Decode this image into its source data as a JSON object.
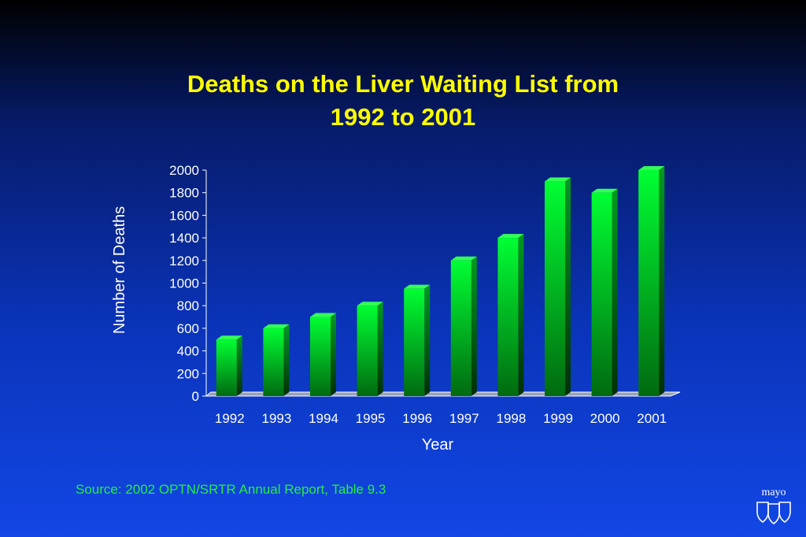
{
  "chart_data": {
    "type": "bar",
    "title_line1": "Deaths on the Liver Waiting List from",
    "title_line2": "1992 to 2001",
    "xlabel": "Year",
    "ylabel": "Number of Deaths",
    "categories": [
      "1992",
      "1993",
      "1994",
      "1995",
      "1996",
      "1997",
      "1998",
      "1999",
      "2000",
      "2001"
    ],
    "values": [
      500,
      600,
      700,
      800,
      950,
      1200,
      1400,
      1900,
      1800,
      2000
    ],
    "ylim": [
      0,
      2000
    ],
    "yticks": [
      0,
      200,
      400,
      600,
      800,
      1000,
      1200,
      1400,
      1600,
      1800,
      2000
    ],
    "grid": false,
    "bar_style": "3d",
    "colors": {
      "bar": "#00ff33",
      "bar_dark": "#006a10",
      "title": "#ffff00",
      "axis_text": "#ffffff"
    }
  },
  "source_text": "Source:  2002 OPTN/SRTR Annual Report, Table 9.3",
  "logo": {
    "text": "mayo",
    "icon": "mayo-shields-logo"
  }
}
